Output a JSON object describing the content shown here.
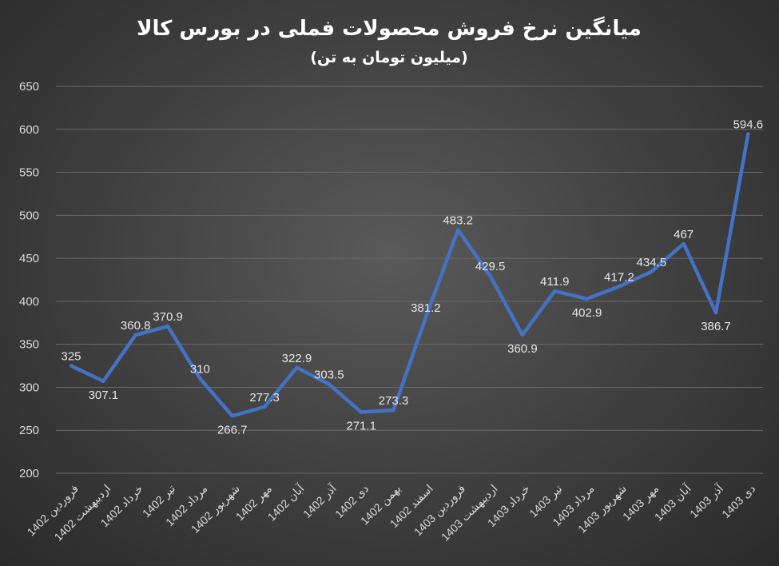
{
  "chart_data": {
    "type": "line",
    "title": "میانگین نرخ فروش محصولات فملی در بورس کالا",
    "subtitle": "(میلیون تومان به تن)",
    "categories": [
      "فروردین 1402",
      "اردیبهشت 1402",
      "خرداد 1402",
      "تیر 1402",
      "مرداد 1402",
      "شهریور 1402",
      "مهر 1402",
      "آبان 1402",
      "آذر 1402",
      "دی 1402",
      "بهمن 1402",
      "اسفند 1402",
      "فروردین 1403",
      "اردیبهشت 1403",
      "خرداد 1403",
      "تیر 1403",
      "مرداد 1403",
      "شهریور 1403",
      "مهر 1403",
      "آبان 1403",
      "آذر 1403",
      "دی 1403"
    ],
    "series": [
      {
        "values": [
          325,
          307.1,
          360.8,
          370.9,
          310,
          266.7,
          277.3,
          322.9,
          303.5,
          271.1,
          273.3,
          381.2,
          483.2,
          429.5,
          360.9,
          411.9,
          402.9,
          417.2,
          434.5,
          467,
          386.7,
          594.6
        ],
        "color": "#4472c4"
      }
    ],
    "y_ticks": [
      "200",
      "250",
      "300",
      "350",
      "400",
      "450",
      "500",
      "550",
      "600",
      "650"
    ],
    "ylim": [
      200,
      650
    ],
    "grid": true,
    "legend": "none"
  }
}
